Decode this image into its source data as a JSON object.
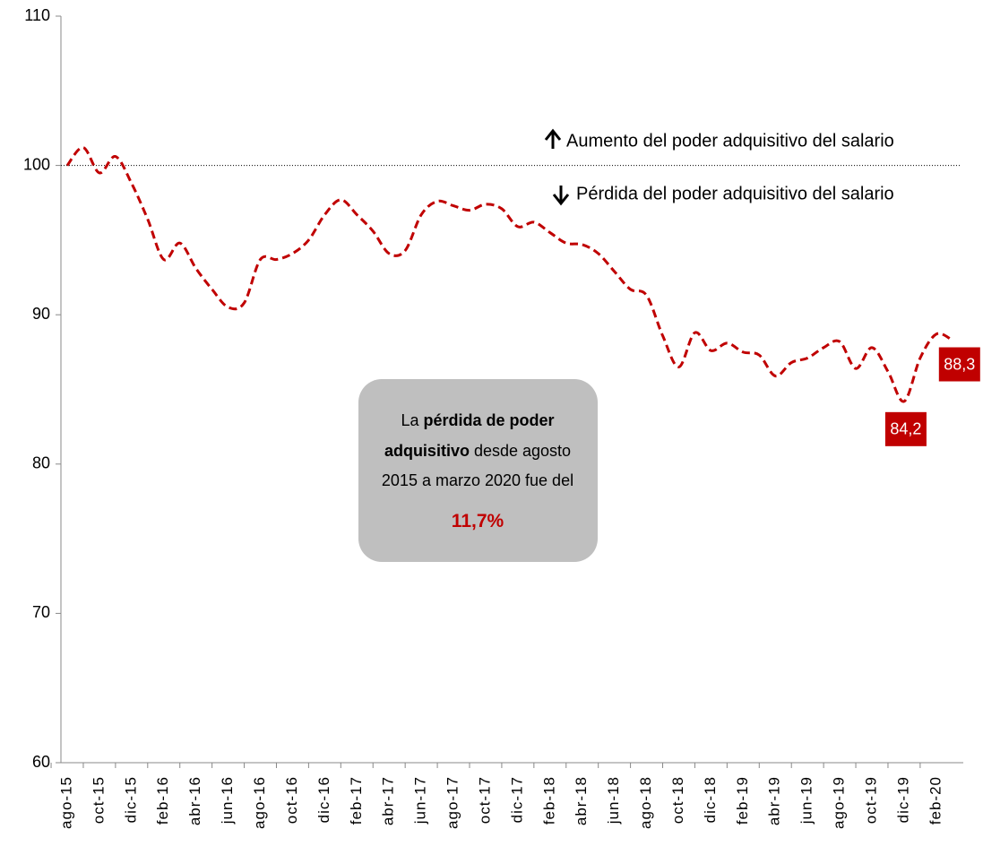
{
  "chart_data": {
    "type": "line",
    "categories": [
      "ago-15",
      null,
      "oct-15",
      null,
      "dic-15",
      null,
      "feb-16",
      null,
      "abr-16",
      null,
      "jun-16",
      null,
      "ago-16",
      null,
      "oct-16",
      null,
      "dic-16",
      null,
      "feb-17",
      null,
      "abr-17",
      null,
      "jun-17",
      null,
      "ago-17",
      null,
      "oct-17",
      null,
      "dic-17",
      null,
      "feb-18",
      null,
      "abr-18",
      null,
      "jun-18",
      null,
      "ago-18",
      null,
      "oct-18",
      null,
      "dic-18",
      null,
      "feb-19",
      null,
      "abr-19",
      null,
      "jun-19",
      null,
      "ago-19",
      null,
      "oct-19",
      null,
      "dic-19",
      null,
      "feb-20",
      null
    ],
    "series": [
      {
        "color": "#c00000",
        "values": [
          100.0,
          101.2,
          99.5,
          100.6,
          98.8,
          96.4,
          93.7,
          94.8,
          93.1,
          91.7,
          90.5,
          90.8,
          93.7,
          93.7,
          94.1,
          95.0,
          96.7,
          97.7,
          96.7,
          95.6,
          94.1,
          94.3,
          96.7,
          97.6,
          97.3,
          97.0,
          97.4,
          97.1,
          95.9,
          96.2,
          95.5,
          94.8,
          94.7,
          94.1,
          92.9,
          91.7,
          91.3,
          88.6,
          86.5,
          88.8,
          87.6,
          88.1,
          87.5,
          87.3,
          85.9,
          86.8,
          87.1,
          87.8,
          88.2,
          86.4,
          87.8,
          86.2,
          84.2,
          87.1,
          88.7,
          88.3
        ],
        "value_labels": [
          null,
          null,
          null,
          null,
          null,
          null,
          null,
          null,
          null,
          null,
          null,
          null,
          null,
          null,
          null,
          null,
          null,
          null,
          null,
          null,
          null,
          null,
          null,
          null,
          null,
          null,
          null,
          null,
          null,
          null,
          null,
          null,
          null,
          null,
          null,
          null,
          null,
          null,
          null,
          null,
          null,
          null,
          null,
          null,
          null,
          null,
          null,
          null,
          null,
          null,
          null,
          null,
          "84,2",
          null,
          null,
          "88,3"
        ]
      }
    ],
    "ylim": [
      60,
      110
    ],
    "yticks": [
      60,
      70,
      80,
      90,
      100,
      110
    ],
    "reference_line": 100,
    "annotations": [
      "Aumento del poder adquisitivo del salario",
      "Pérdida del poder adquisitivo del salario"
    ],
    "note": {
      "lines": [
        [
          {
            "text": "La "
          },
          {
            "text": "pérdida de poder",
            "bold": true
          }
        ],
        [
          {
            "text": "adquisitivo",
            "bold": true
          },
          {
            "text": " desde agosto"
          }
        ],
        [
          {
            "text": "2015 a marzo 2020 fue del"
          }
        ],
        [
          {
            "text": "11,7%",
            "bold": true,
            "color": "#c00000"
          }
        ]
      ]
    }
  }
}
